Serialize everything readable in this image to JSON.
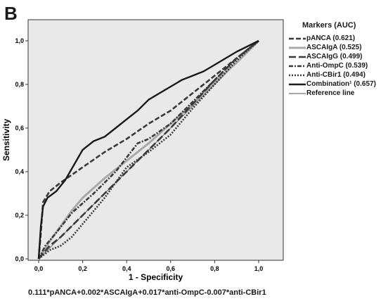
{
  "panel_label": "B",
  "footnote": "0.111*pANCA+0.002*ASCAIgA+0.017*anti-OmpC-0.007*anti-CBir1",
  "chart_data": {
    "type": "line",
    "title": "",
    "xlabel": "1 - Specificity",
    "ylabel": "Sensitivity",
    "xlim": [
      0,
      1
    ],
    "ylim": [
      0,
      1
    ],
    "xticks": [
      0,
      0.2,
      0.4,
      0.6,
      0.8,
      1.0
    ],
    "yticks": [
      0,
      0.2,
      0.4,
      0.6,
      0.8,
      1.0
    ],
    "xtick_labels": [
      "0,0",
      "0,2",
      "0,4",
      "0,6",
      "0,8",
      "1,0"
    ],
    "ytick_labels": [
      "0,0",
      "0,2",
      "0,4",
      "0,6",
      "0,8",
      "1,0"
    ],
    "grid": false,
    "plot_background": "#e9e9e9",
    "legend_title": "Markers (AUC)",
    "legend_position": "right",
    "series": [
      {
        "name": "pANCA (0.621)",
        "color": "#3a3a3a",
        "dash": "dash",
        "values": [
          [
            0,
            0
          ],
          [
            0.01,
            0.12
          ],
          [
            0.02,
            0.26
          ],
          [
            0.05,
            0.31
          ],
          [
            0.1,
            0.35
          ],
          [
            0.2,
            0.42
          ],
          [
            0.3,
            0.49
          ],
          [
            0.4,
            0.55
          ],
          [
            0.5,
            0.62
          ],
          [
            0.6,
            0.68
          ],
          [
            0.7,
            0.76
          ],
          [
            0.8,
            0.84
          ],
          [
            0.9,
            0.92
          ],
          [
            1,
            1
          ]
        ]
      },
      {
        "name": "ASCAIgA (0.525)",
        "color": "#a8a8a8",
        "dash": "solid",
        "values": [
          [
            0,
            0
          ],
          [
            0.05,
            0.08
          ],
          [
            0.1,
            0.15
          ],
          [
            0.15,
            0.22
          ],
          [
            0.2,
            0.28
          ],
          [
            0.3,
            0.37
          ],
          [
            0.4,
            0.45
          ],
          [
            0.5,
            0.53
          ],
          [
            0.6,
            0.62
          ],
          [
            0.7,
            0.71
          ],
          [
            0.8,
            0.81
          ],
          [
            0.9,
            0.9
          ],
          [
            1,
            1
          ]
        ]
      },
      {
        "name": "ASCAIgG (0.499)",
        "color": "#3a3a3a",
        "dash": "longdash",
        "values": [
          [
            0,
            0
          ],
          [
            0.05,
            0.06
          ],
          [
            0.1,
            0.1
          ],
          [
            0.2,
            0.2
          ],
          [
            0.3,
            0.3
          ],
          [
            0.4,
            0.4
          ],
          [
            0.5,
            0.5
          ],
          [
            0.6,
            0.6
          ],
          [
            0.7,
            0.71
          ],
          [
            0.8,
            0.82
          ],
          [
            0.9,
            0.92
          ],
          [
            1,
            1
          ]
        ]
      },
      {
        "name": "Anti-OmpC (0.539)",
        "color": "#3a3a3a",
        "dash": "dashdot",
        "values": [
          [
            0,
            0
          ],
          [
            0.03,
            0.06
          ],
          [
            0.08,
            0.12
          ],
          [
            0.15,
            0.21
          ],
          [
            0.25,
            0.3
          ],
          [
            0.35,
            0.4
          ],
          [
            0.45,
            0.53
          ],
          [
            0.5,
            0.55
          ],
          [
            0.6,
            0.62
          ],
          [
            0.7,
            0.72
          ],
          [
            0.8,
            0.82
          ],
          [
            0.9,
            0.92
          ],
          [
            1,
            1
          ]
        ]
      },
      {
        "name": "Anti-CBir1 (0.494)",
        "color": "#3a3a3a",
        "dash": "dot",
        "values": [
          [
            0,
            0
          ],
          [
            0.05,
            0.04
          ],
          [
            0.1,
            0.06
          ],
          [
            0.15,
            0.1
          ],
          [
            0.2,
            0.16
          ],
          [
            0.3,
            0.28
          ],
          [
            0.4,
            0.42
          ],
          [
            0.5,
            0.49
          ],
          [
            0.6,
            0.57
          ],
          [
            0.7,
            0.69
          ],
          [
            0.8,
            0.8
          ],
          [
            0.9,
            0.91
          ],
          [
            1,
            1
          ]
        ]
      },
      {
        "name": "Combination¹ (0.657)",
        "color": "#1a1a1a",
        "dash": "solid",
        "values": [
          [
            0,
            0
          ],
          [
            0.01,
            0.15
          ],
          [
            0.02,
            0.24
          ],
          [
            0.04,
            0.28
          ],
          [
            0.08,
            0.31
          ],
          [
            0.12,
            0.36
          ],
          [
            0.2,
            0.5
          ],
          [
            0.25,
            0.54
          ],
          [
            0.3,
            0.56
          ],
          [
            0.35,
            0.6
          ],
          [
            0.4,
            0.64
          ],
          [
            0.45,
            0.68
          ],
          [
            0.5,
            0.73
          ],
          [
            0.55,
            0.76
          ],
          [
            0.6,
            0.79
          ],
          [
            0.65,
            0.82
          ],
          [
            0.7,
            0.84
          ],
          [
            0.75,
            0.86
          ],
          [
            0.8,
            0.89
          ],
          [
            0.9,
            0.95
          ],
          [
            1,
            1
          ]
        ]
      },
      {
        "name": "Reference line",
        "color": "#8a8a8a",
        "dash": "solid",
        "values": [
          [
            0,
            0
          ],
          [
            1,
            1
          ]
        ]
      }
    ]
  }
}
